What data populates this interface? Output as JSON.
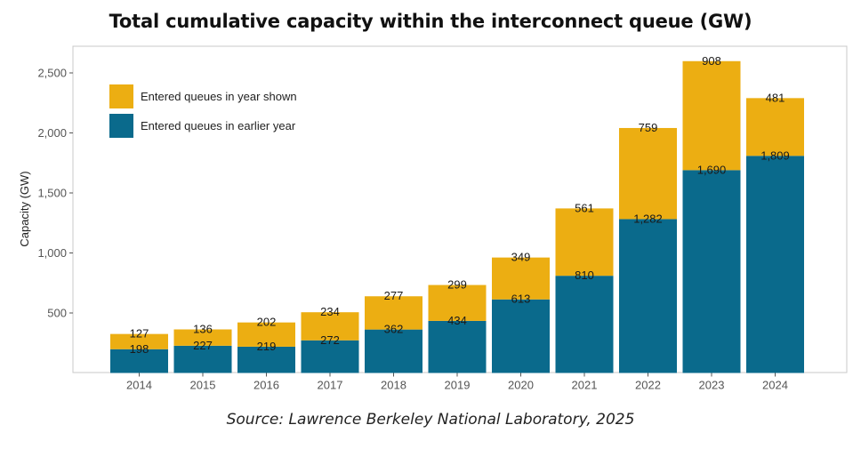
{
  "chart_data": {
    "type": "bar",
    "stacked": true,
    "title": "Total cumulative capacity within the interconnect queue (GW)",
    "xlabel": "",
    "ylabel": "Capacity (GW)",
    "ylim": [
      0,
      2600
    ],
    "yticks": [
      500,
      1000,
      1500,
      2000,
      2500
    ],
    "ytick_labels": [
      "500",
      "1,000",
      "1,500",
      "2,000",
      "2,500"
    ],
    "grid": false,
    "legend_position": "top-left",
    "categories": [
      "2014",
      "2015",
      "2016",
      "2017",
      "2018",
      "2019",
      "2020",
      "2021",
      "2022",
      "2023",
      "2024"
    ],
    "series": [
      {
        "name": "Entered queues in earlier year",
        "color": "#0a6a8c",
        "values": [
          198,
          227,
          219,
          272,
          362,
          434,
          613,
          810,
          1282,
          1690,
          1809
        ],
        "labels": [
          "198",
          "227",
          "219",
          "272",
          "362",
          "434",
          "613",
          "810",
          "1,282",
          "1,690",
          "1,809"
        ]
      },
      {
        "name": "Entered queues in year shown",
        "color": "#ecae12",
        "values": [
          127,
          136,
          202,
          234,
          277,
          299,
          349,
          561,
          759,
          908,
          481
        ],
        "labels": [
          "127",
          "136",
          "202",
          "234",
          "277",
          "299",
          "349",
          "561",
          "759",
          "908",
          "481"
        ]
      }
    ],
    "source": "Source: Lawrence Berkeley National Laboratory, 2025"
  }
}
